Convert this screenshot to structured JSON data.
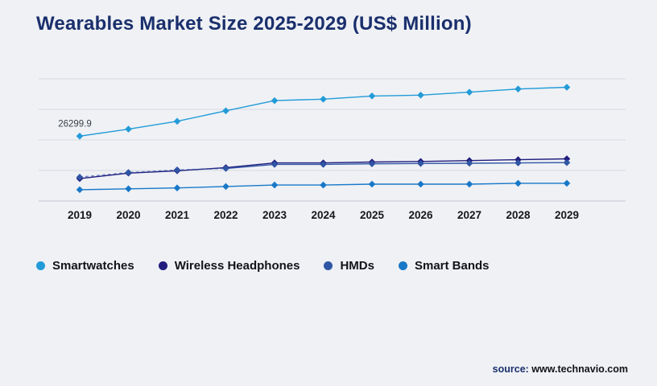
{
  "header": {
    "title_color": "#1a2f6c"
  },
  "chart_data": {
    "type": "line",
    "title": "Wearables Market Size 2025-2029 (US$ Million)",
    "xlabel": "",
    "ylabel": "",
    "x": [
      2019,
      2020,
      2021,
      2022,
      2023,
      2024,
      2025,
      2026,
      2027,
      2028,
      2029
    ],
    "ylim": [
      4000,
      46000
    ],
    "grid": true,
    "gridline_count": 5,
    "legend_position": "bottom",
    "annotation": {
      "text": "26299.9",
      "series": "Smartwatches",
      "x_index": 0
    },
    "series": [
      {
        "name": "Smartwatches",
        "color": "#229bd8",
        "marker": "diamond",
        "values": [
          26299.9,
          28700,
          31400,
          35000,
          38500,
          39000,
          40100,
          40400,
          41400,
          42500,
          43100
        ]
      },
      {
        "name": "Wireless Headphones",
        "color": "#211c7d",
        "marker": "diamond",
        "values": [
          11700,
          13600,
          14400,
          15500,
          17100,
          17100,
          17400,
          17600,
          17900,
          18200,
          18500
        ]
      },
      {
        "name": "HMDs",
        "color": "#2f55a4",
        "marker": "diamond",
        "dashed_until_index": 3,
        "values": [
          12200,
          13800,
          14700,
          15200,
          16600,
          16600,
          16800,
          16900,
          17000,
          17100,
          17200
        ]
      },
      {
        "name": "Smart Bands",
        "color": "#1878c8",
        "marker": "diamond",
        "values": [
          7900,
          8200,
          8500,
          9000,
          9500,
          9500,
          9800,
          9800,
          9800,
          10100,
          10100
        ]
      }
    ]
  },
  "source": {
    "label": "source:",
    "url": " www.technavio.com"
  }
}
